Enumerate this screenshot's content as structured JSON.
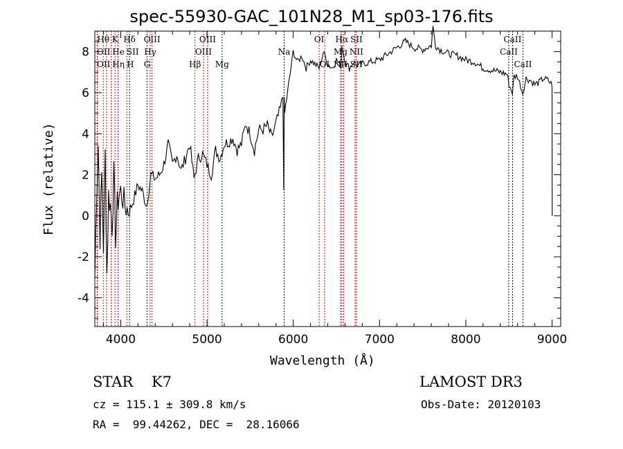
{
  "chart_data": {
    "type": "line",
    "title": "spec-55930-GAC_101N28_M1_sp03-176.fits",
    "xlabel": "Wavelength (Å)",
    "ylabel": "Flux (relative)",
    "xlim": [
      3700,
      9100
    ],
    "ylim": [
      -5.4,
      9.0
    ],
    "xticks": [
      4000,
      5000,
      6000,
      7000,
      8000,
      9000
    ],
    "yticks": [
      -4,
      -2,
      0,
      2,
      4,
      6,
      8
    ],
    "series": [
      {
        "name": "spectrum",
        "x": [
          3700,
          3720,
          3740,
          3760,
          3780,
          3800,
          3820,
          3840,
          3860,
          3880,
          3900,
          3920,
          3940,
          3960,
          3980,
          4000,
          4050,
          4100,
          4150,
          4200,
          4250,
          4300,
          4350,
          4400,
          4450,
          4500,
          4550,
          4600,
          4650,
          4700,
          4750,
          4800,
          4850,
          4900,
          4950,
          5000,
          5050,
          5100,
          5150,
          5200,
          5250,
          5300,
          5350,
          5400,
          5450,
          5500,
          5550,
          5600,
          5650,
          5700,
          5750,
          5800,
          5850,
          5880,
          5890,
          5895,
          5900,
          5950,
          6000,
          6050,
          6100,
          6150,
          6200,
          6250,
          6300,
          6350,
          6400,
          6450,
          6500,
          6550,
          6563,
          6600,
          6650,
          6700,
          6750,
          6800,
          6900,
          7000,
          7100,
          7200,
          7300,
          7400,
          7500,
          7600,
          7620,
          7650,
          7700,
          7800,
          7900,
          8000,
          8100,
          8200,
          8300,
          8400,
          8480,
          8500,
          8540,
          8560,
          8600,
          8660,
          8700,
          8750,
          8800,
          8850,
          8900,
          8950,
          9000,
          9001
        ],
        "y": [
          -3,
          1,
          3.5,
          -1,
          2,
          -1.5,
          3,
          -2.8,
          1,
          0.5,
          -0.5,
          2,
          -1,
          0.5,
          1,
          1.2,
          0.5,
          0.2,
          0.8,
          1.5,
          1.2,
          0.5,
          2,
          1.8,
          2,
          2.5,
          3.5,
          2.5,
          3,
          2.2,
          2.8,
          3.5,
          1.8,
          2.8,
          3,
          2.5,
          2,
          3.2,
          2.8,
          3.5,
          3.6,
          3.8,
          3.2,
          3.5,
          4.5,
          4,
          3.2,
          4.2,
          4.2,
          4.4,
          3.8,
          4.5,
          5.2,
          5.8,
          1.5,
          5.5,
          5,
          6.5,
          8,
          7.5,
          7.8,
          7.2,
          7.6,
          7.4,
          7.2,
          8,
          7.4,
          7.2,
          7.6,
          7.3,
          8.3,
          7.5,
          7.2,
          7.5,
          7.3,
          7.4,
          7.5,
          7.6,
          7.9,
          8.2,
          8.5,
          8.2,
          8.1,
          8.3,
          9.2,
          8.3,
          8.1,
          7.9,
          7.8,
          7.6,
          7.5,
          7.2,
          7.1,
          7,
          6.9,
          6.4,
          6,
          6.8,
          6.8,
          6,
          6.7,
          6.6,
          6.4,
          6.5,
          6.7,
          6.6,
          6.4,
          0
        ]
      }
    ],
    "lines": [
      {
        "label": "Hθ",
        "w": 3798,
        "row": 0,
        "color": "red"
      },
      {
        "label": "K",
        "w": 3934,
        "row": 0,
        "color": "red"
      },
      {
        "label": "Hδ",
        "w": 4102,
        "row": 0,
        "color": "black"
      },
      {
        "label": "OIII",
        "w": 4363,
        "row": 0,
        "color": "red"
      },
      {
        "label": "OIII",
        "w": 5007,
        "row": 0,
        "color": "red"
      },
      {
        "label": "OI",
        "w": 6300,
        "row": 0,
        "color": "red"
      },
      {
        "label": "Hα",
        "w": 6563,
        "row": 0,
        "color": "red"
      },
      {
        "label": "SII",
        "w": 6716,
        "row": 0,
        "color": "red"
      },
      {
        "label": "CaII",
        "w": 8542,
        "row": 0,
        "color": "black"
      },
      {
        "label": "OII",
        "w": 3727,
        "row": 1,
        "color": "red"
      },
      {
        "label": "He",
        "w": 3889,
        "row": 1,
        "color": "red"
      },
      {
        "label": "SII",
        "w": 4072,
        "row": 1,
        "color": "red"
      },
      {
        "label": "Hγ",
        "w": 4341,
        "row": 1,
        "color": "red"
      },
      {
        "label": "OIII",
        "w": 4959,
        "row": 1,
        "color": "red"
      },
      {
        "label": "Na",
        "w": 5894,
        "row": 1,
        "color": "black"
      },
      {
        "label": "NII",
        "w": 6583,
        "row": 1,
        "color": "red"
      },
      {
        "label": "Mg",
        "w": 6548,
        "row": 1,
        "color": "black"
      },
      {
        "label": "CaII",
        "w": 8498,
        "row": 1,
        "color": "black"
      },
      {
        "label": "OII",
        "w": 3730,
        "row": 2,
        "color": "red"
      },
      {
        "label": "Hη",
        "w": 3835,
        "row": 2,
        "color": "red"
      },
      {
        "label": "H",
        "w": 3969,
        "row": 2,
        "color": "red"
      },
      {
        "label": "G",
        "w": 4305,
        "row": 2,
        "color": "black"
      },
      {
        "label": "Hβ",
        "w": 4861,
        "row": 2,
        "color": "red"
      },
      {
        "label": "Mg",
        "w": 5175,
        "row": 2,
        "color": "black"
      },
      {
        "label": "OI",
        "w": 6364,
        "row": 2,
        "color": "red"
      },
      {
        "label": "NII",
        "w": 6548,
        "row": 2,
        "color": "red"
      },
      {
        "label": "SII",
        "w": 6731,
        "row": 2,
        "color": "red"
      },
      {
        "label": "CaII",
        "w": 8662,
        "row": 2,
        "color": "black"
      }
    ]
  },
  "info": {
    "class": "STAR    K7",
    "survey": "LAMOST DR3",
    "cz": "cz = 115.1 ± 309.8 km/s",
    "obs_date": "Obs-Date: 20120103",
    "radec": "RA =  99.44262, DEC =  28.16066"
  }
}
